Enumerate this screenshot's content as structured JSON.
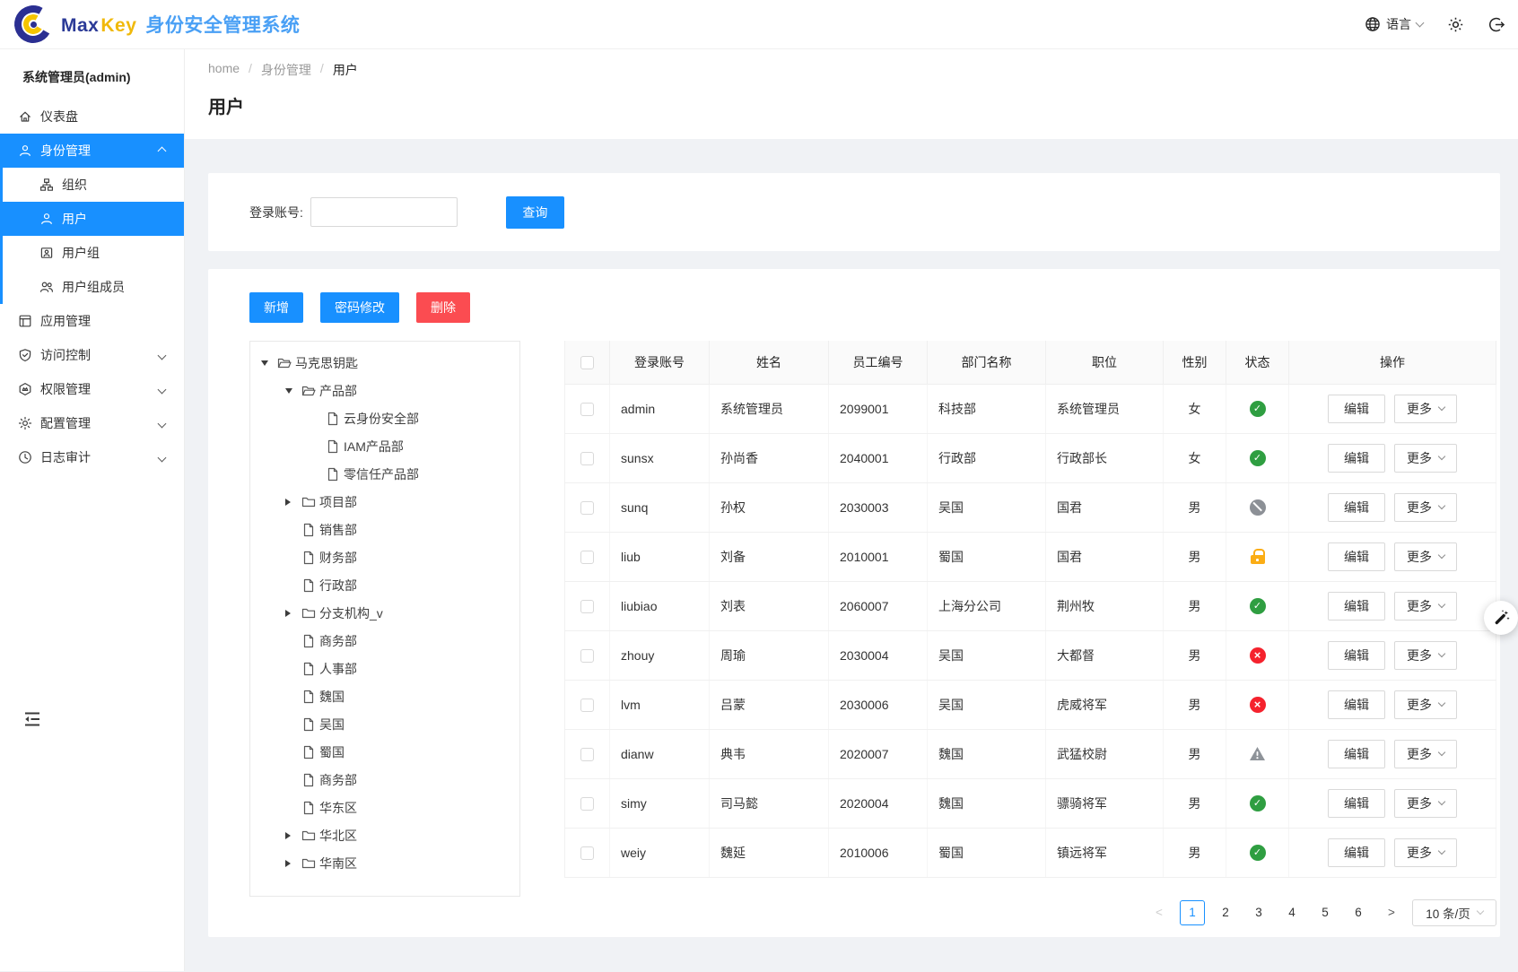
{
  "colors": {
    "accent": "#1890ff",
    "danger": "#fb4c51",
    "success": "#2f9e41",
    "error": "#f5222d",
    "warning_lock": "#fbad15",
    "muted": "#8c9096"
  },
  "header": {
    "brand": {
      "max": "Max",
      "key": "Key",
      "title": "身份安全管理系统"
    },
    "actions": {
      "language_label": "语言"
    }
  },
  "sidebar": {
    "user_title": "系统管理员(admin)",
    "items": [
      {
        "key": "dashboard",
        "label": "仪表盘",
        "icon": "home-icon"
      },
      {
        "key": "identity",
        "label": "身份管理",
        "icon": "person-icon",
        "active": true,
        "chevron": "up",
        "children": [
          {
            "key": "organization",
            "label": "组织",
            "icon": "org-icon"
          },
          {
            "key": "users",
            "label": "用户",
            "icon": "person-icon",
            "active": true
          },
          {
            "key": "user-groups",
            "label": "用户组",
            "icon": "group-icon"
          },
          {
            "key": "group-members",
            "label": "用户组成员",
            "icon": "members-icon"
          }
        ]
      },
      {
        "key": "apps",
        "label": "应用管理",
        "icon": "app-icon"
      },
      {
        "key": "access-control",
        "label": "访问控制",
        "icon": "shield-icon",
        "chevron": "down"
      },
      {
        "key": "permissions",
        "label": "权限管理",
        "icon": "badge-icon",
        "chevron": "down"
      },
      {
        "key": "config",
        "label": "配置管理",
        "icon": "gear-icon",
        "chevron": "down"
      },
      {
        "key": "audit",
        "label": "日志审计",
        "icon": "clock-icon",
        "chevron": "down"
      }
    ]
  },
  "breadcrumb": [
    "home",
    "身份管理",
    "用户"
  ],
  "page_title": "用户",
  "search": {
    "label": "登录账号:",
    "input_value": "",
    "query_button": "查询"
  },
  "toolbar": {
    "add": "新增",
    "change_password": "密码修改",
    "delete": "删除"
  },
  "tree": {
    "nodes": [
      {
        "label": "马克思钥匙",
        "level": 0,
        "type": "folder-open",
        "caret": "down"
      },
      {
        "label": "产品部",
        "level": 1,
        "type": "folder-open",
        "caret": "down"
      },
      {
        "label": "云身份安全部",
        "level": 2,
        "type": "file",
        "caret": "none"
      },
      {
        "label": "IAM产品部",
        "level": 2,
        "type": "file",
        "caret": "none"
      },
      {
        "label": "零信任产品部",
        "level": 2,
        "type": "file",
        "caret": "none"
      },
      {
        "label": "项目部",
        "level": 1,
        "type": "folder",
        "caret": "right"
      },
      {
        "label": "销售部",
        "level": 1,
        "type": "file",
        "caret": "none"
      },
      {
        "label": "财务部",
        "level": 1,
        "type": "file",
        "caret": "none"
      },
      {
        "label": "行政部",
        "level": 1,
        "type": "file",
        "caret": "none"
      },
      {
        "label": "分支机构_v",
        "level": 1,
        "type": "folder",
        "caret": "right"
      },
      {
        "label": "商务部",
        "level": 1,
        "type": "file",
        "caret": "none"
      },
      {
        "label": "人事部",
        "level": 1,
        "type": "file",
        "caret": "none"
      },
      {
        "label": "魏国",
        "level": 1,
        "type": "file",
        "caret": "none"
      },
      {
        "label": "吴国",
        "level": 1,
        "type": "file",
        "caret": "none"
      },
      {
        "label": "蜀国",
        "level": 1,
        "type": "file",
        "caret": "none"
      },
      {
        "label": "商务部",
        "level": 1,
        "type": "file",
        "caret": "none"
      },
      {
        "label": "华东区",
        "level": 1,
        "type": "file",
        "caret": "none"
      },
      {
        "label": "华北区",
        "level": 1,
        "type": "folder",
        "caret": "right"
      },
      {
        "label": "华南区",
        "level": 1,
        "type": "folder",
        "caret": "right"
      }
    ]
  },
  "table": {
    "columns": [
      "登录账号",
      "姓名",
      "员工编号",
      "部门名称",
      "职位",
      "性别",
      "状态",
      "操作"
    ],
    "edit_label": "编辑",
    "more_label": "更多",
    "rows": [
      {
        "account": "admin",
        "name": "系统管理员",
        "employee_id": "2099001",
        "department": "科技部",
        "position": "系统管理员",
        "gender": "女",
        "status": "active"
      },
      {
        "account": "sunsx",
        "name": "孙尚香",
        "employee_id": "2040001",
        "department": "行政部",
        "position": "行政部长",
        "gender": "女",
        "status": "active"
      },
      {
        "account": "sunq",
        "name": "孙权",
        "employee_id": "2030003",
        "department": "吴国",
        "position": "国君",
        "gender": "男",
        "status": "forbidden"
      },
      {
        "account": "liub",
        "name": "刘备",
        "employee_id": "2010001",
        "department": "蜀国",
        "position": "国君",
        "gender": "男",
        "status": "locked"
      },
      {
        "account": "liubiao",
        "name": "刘表",
        "employee_id": "2060007",
        "department": "上海分公司",
        "position": "荆州牧",
        "gender": "男",
        "status": "active"
      },
      {
        "account": "zhouy",
        "name": "周瑜",
        "employee_id": "2030004",
        "department": "吴国",
        "position": "大都督",
        "gender": "男",
        "status": "inactive"
      },
      {
        "account": "lvm",
        "name": "吕蒙",
        "employee_id": "2030006",
        "department": "吴国",
        "position": "虎威将军",
        "gender": "男",
        "status": "inactive"
      },
      {
        "account": "dianw",
        "name": "典韦",
        "employee_id": "2020007",
        "department": "魏国",
        "position": "武猛校尉",
        "gender": "男",
        "status": "warning"
      },
      {
        "account": "simy",
        "name": "司马懿",
        "employee_id": "2020004",
        "department": "魏国",
        "position": "骠骑将军",
        "gender": "男",
        "status": "active"
      },
      {
        "account": "weiy",
        "name": "魏延",
        "employee_id": "2010006",
        "department": "蜀国",
        "position": "镇远将军",
        "gender": "男",
        "status": "active"
      }
    ]
  },
  "pagination": {
    "prev": "<",
    "next": ">",
    "pages": [
      "1",
      "2",
      "3",
      "4",
      "5",
      "6"
    ],
    "current": "1",
    "page_size": "10 条/页"
  }
}
